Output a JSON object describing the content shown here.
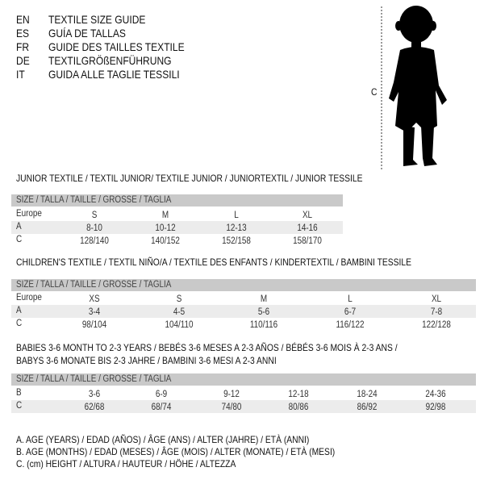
{
  "languages": [
    {
      "code": "EN",
      "title": "TEXTILE SIZE GUIDE"
    },
    {
      "code": "ES",
      "title": "GUÍA DE TALLAS"
    },
    {
      "code": "FR",
      "title": "GUIDE DES TAILLES TEXTILE"
    },
    {
      "code": "DE",
      "title": "TEXTILGRÖßENFÜHRUNG"
    },
    {
      "code": "IT",
      "title": "GUIDA ALLE TAGLIE TESSILI"
    }
  ],
  "figure": {
    "height_label": "C"
  },
  "size_header": "SIZE / TALLA / TAILLE / GRÖSSE / TAGLIA",
  "junior": {
    "heading": "JUNIOR TEXTILE / TEXTIL JUNIOR/ TEXTILE JUNIOR / JUNIORTEXTIL / JUNIOR TESSILE",
    "rows": [
      {
        "label": "Europe",
        "values": [
          "S",
          "M",
          "L",
          "XL"
        ]
      },
      {
        "label": "A",
        "values": [
          "8-10",
          "10-12",
          "12-13",
          "14-16"
        ]
      },
      {
        "label": "C",
        "values": [
          "128/140",
          "140/152",
          "152/158",
          "158/170"
        ]
      }
    ]
  },
  "children": {
    "heading": "CHILDREN'S TEXTILE / TEXTIL NIÑO/A / TEXTILE DES ENFANTS / KINDERTEXTIL / BAMBINI TESSILE",
    "rows": [
      {
        "label": "Europe",
        "values": [
          "XS",
          "S",
          "M",
          "L",
          "XL"
        ]
      },
      {
        "label": "A",
        "values": [
          "3-4",
          "4-5",
          "5-6",
          "6-7",
          "7-8"
        ]
      },
      {
        "label": "C",
        "values": [
          "98/104",
          "104/110",
          "110/116",
          "116/122",
          "122/128"
        ]
      }
    ]
  },
  "babies": {
    "heading_line1": "BABIES 3-6 MONTH TO 2-3 YEARS / BEBÉS 3-6 MESES A 2-3 AÑOS / BÉBÉS 3-6 MOIS À 2-3 ANS /",
    "heading_line2": "BABYS 3-6 MONATE BIS 2-3 JAHRE / BAMBINI 3-6 MESI A 2-3 ANNI",
    "rows": [
      {
        "label": "B",
        "values": [
          "3-6",
          "6-9",
          "9-12",
          "12-18",
          "18-24",
          "24-36"
        ]
      },
      {
        "label": "C",
        "values": [
          "62/68",
          "68/74",
          "74/80",
          "80/86",
          "86/92",
          "92/98"
        ]
      }
    ]
  },
  "legend": [
    "A. AGE (YEARS) / EDAD (AÑOS) / ÂGE (ANS) / ALTER (JAHRE) / ETÀ (ANNI)",
    "B. AGE (MONTHS) / EDAD (MESES) / ÂGE (MOIS) / ALTER (MONATE) / ETÀ (MESI)",
    "C. (cm) HEIGHT / ALTURA / HAUTEUR / HÖHE / ALTEZZA"
  ]
}
